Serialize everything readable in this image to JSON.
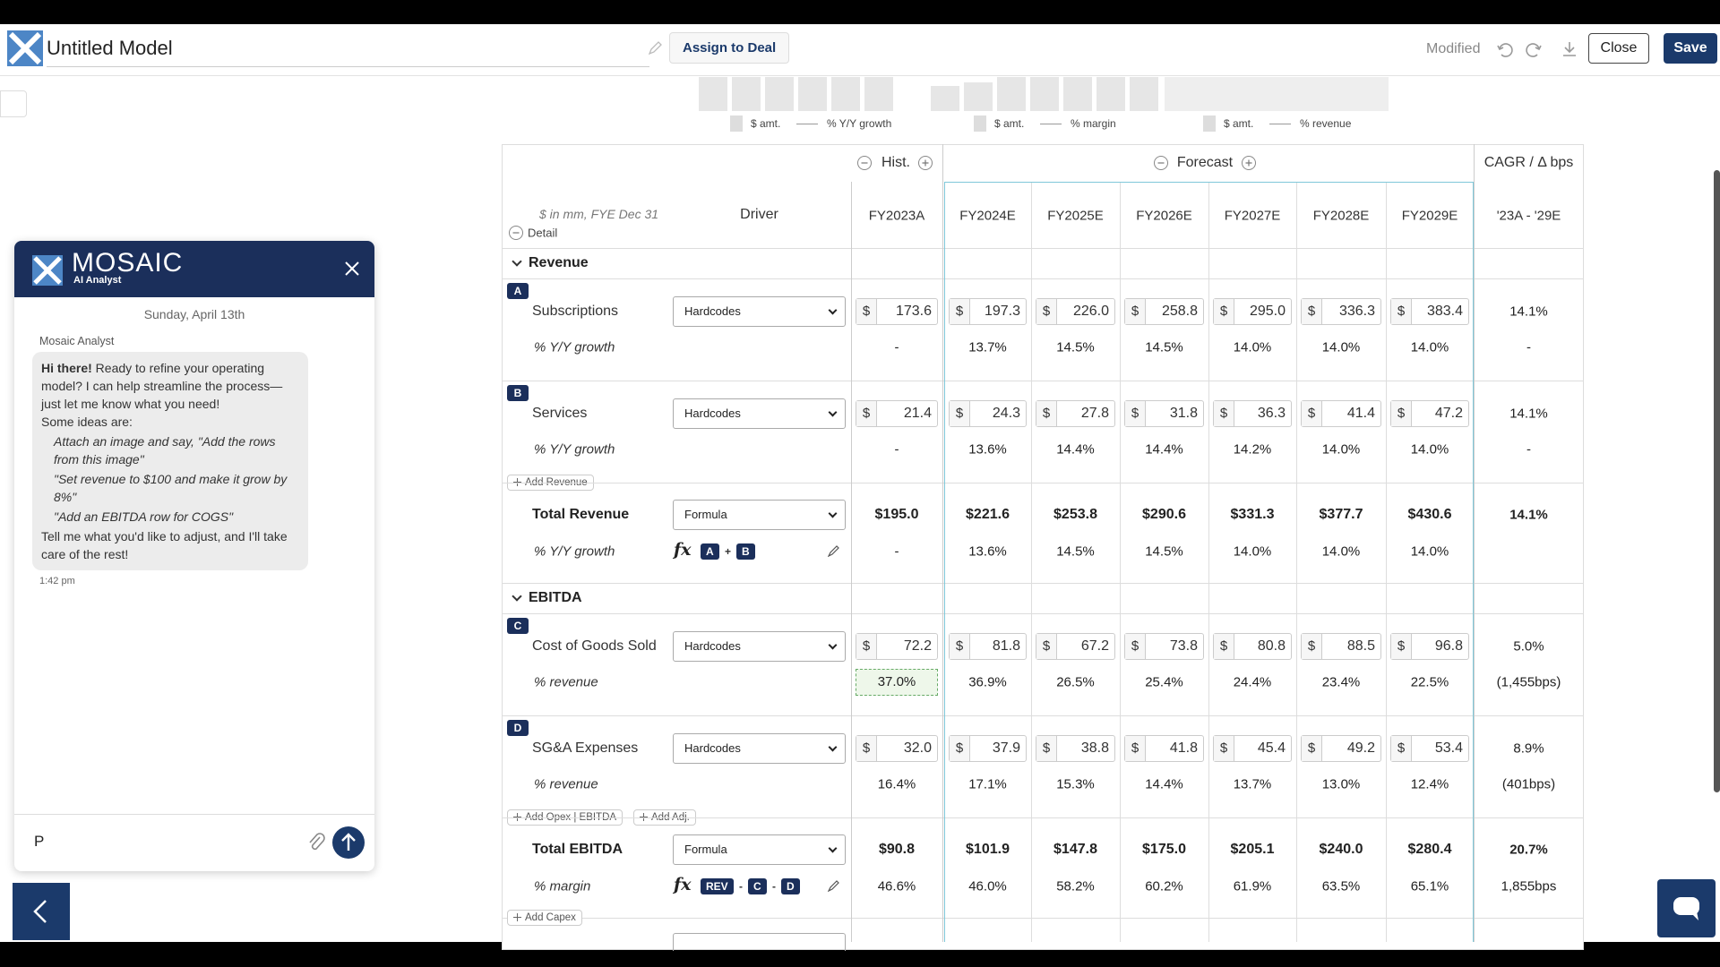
{
  "header": {
    "title": "Untitled Model",
    "assign": "Assign to Deal",
    "status": "Modified",
    "close": "Close",
    "save": "Save"
  },
  "legends": [
    [
      "$ amt.",
      "% Y/Y growth"
    ],
    [
      "$ amt.",
      "% margin"
    ],
    [
      "$ amt.",
      "% revenue"
    ]
  ],
  "table": {
    "hist": "Hist.",
    "forecast": "Forecast",
    "cagr_header": "CAGR / Δ bps",
    "units": "$ in mm, FYE Dec 31",
    "detail": "Detail",
    "driver": "Driver",
    "currency": "$",
    "formula_icon": "fx",
    "columns": [
      "FY2023A",
      "FY2024E",
      "FY2025E",
      "FY2026E",
      "FY2027E",
      "FY2028E",
      "FY2029E",
      "'23A - '29E"
    ],
    "sections": [
      {
        "title": "Revenue",
        "blocks": [
          {
            "letter": "A",
            "label": "Subscriptions",
            "driver": "Hardcodes",
            "values": [
              "173.6",
              "197.3",
              "226.0",
              "258.8",
              "295.0",
              "336.3",
              "383.4"
            ],
            "cagr": "14.1%",
            "sub_label": "% Y/Y growth",
            "sub_values": [
              "-",
              "13.7%",
              "14.5%",
              "14.5%",
              "14.0%",
              "14.0%",
              "14.0%"
            ],
            "sub_cagr": "-"
          },
          {
            "letter": "B",
            "label": "Services",
            "driver": "Hardcodes",
            "values": [
              "21.4",
              "24.3",
              "27.8",
              "31.8",
              "36.3",
              "41.4",
              "47.2"
            ],
            "cagr": "14.1%",
            "sub_label": "% Y/Y growth",
            "sub_values": [
              "-",
              "13.6%",
              "14.4%",
              "14.4%",
              "14.2%",
              "14.0%",
              "14.0%"
            ],
            "sub_cagr": "-"
          }
        ],
        "add": [
          "Add Revenue"
        ],
        "total": {
          "label": "Total Revenue",
          "driver": "Formula",
          "values": [
            "$195.0",
            "$221.6",
            "$253.8",
            "$290.6",
            "$331.3",
            "$377.7",
            "$430.6"
          ],
          "cagr": "14.1%",
          "sub_label": "% Y/Y growth",
          "formula": [
            "A",
            "+",
            "B"
          ],
          "sub_values": [
            "-",
            "13.6%",
            "14.5%",
            "14.5%",
            "14.0%",
            "14.0%",
            "14.0%"
          ]
        }
      },
      {
        "title": "EBITDA",
        "blocks": [
          {
            "letter": "C",
            "label": "Cost of Goods Sold",
            "driver": "Hardcodes",
            "values": [
              "72.2",
              "81.8",
              "67.2",
              "73.8",
              "80.8",
              "88.5",
              "96.8"
            ],
            "cagr": "5.0%",
            "sub_label": "% revenue",
            "sub_values": [
              "37.0%",
              "36.9%",
              "26.5%",
              "25.4%",
              "24.4%",
              "23.4%",
              "22.5%"
            ],
            "sub_cagr": "(1,455bps)"
          },
          {
            "letter": "D",
            "label": "SG&A Expenses",
            "driver": "Hardcodes",
            "values": [
              "32.0",
              "37.9",
              "38.8",
              "41.8",
              "45.4",
              "49.2",
              "53.4"
            ],
            "cagr": "8.9%",
            "sub_label": "% revenue",
            "sub_values": [
              "16.4%",
              "17.1%",
              "15.3%",
              "14.4%",
              "13.7%",
              "13.0%",
              "12.4%"
            ],
            "sub_cagr": "(401bps)"
          }
        ],
        "add": [
          "Add Opex | EBITDA",
          "Add Adj."
        ],
        "total": {
          "label": "Total EBITDA",
          "driver": "Formula",
          "values": [
            "$90.8",
            "$101.9",
            "$147.8",
            "$175.0",
            "$205.1",
            "$240.0",
            "$280.4"
          ],
          "cagr": "20.7%",
          "sub_label": "% margin",
          "formula": [
            "REV",
            "-",
            "C",
            "-",
            "D"
          ],
          "sub_values": [
            "46.6%",
            "46.0%",
            "58.2%",
            "60.2%",
            "61.9%",
            "63.5%",
            "65.1%"
          ],
          "sub_cagr": "1,855bps"
        }
      }
    ],
    "footer_add": "Add Capex"
  },
  "chat": {
    "brand": "MOSAIC",
    "subtitle": "AI Analyst",
    "date": "Sunday, April 13th",
    "sender": "Mosaic Analyst",
    "greeting": "Hi there!",
    "intro": " Ready to refine your operating model? I can help streamline the process—just let me know what you need!",
    "ideas_label": "Some ideas are:",
    "ideas": [
      "Attach an image and say, \"Add the rows from this image\"",
      "\"Set revenue to $100 and make it grow by 8%\"",
      "\"Add an EBITDA row for COGS\""
    ],
    "closing": "Tell me what you'd like to adjust, and I'll take care of the rest!",
    "time": "1:42 pm",
    "input": "P"
  }
}
